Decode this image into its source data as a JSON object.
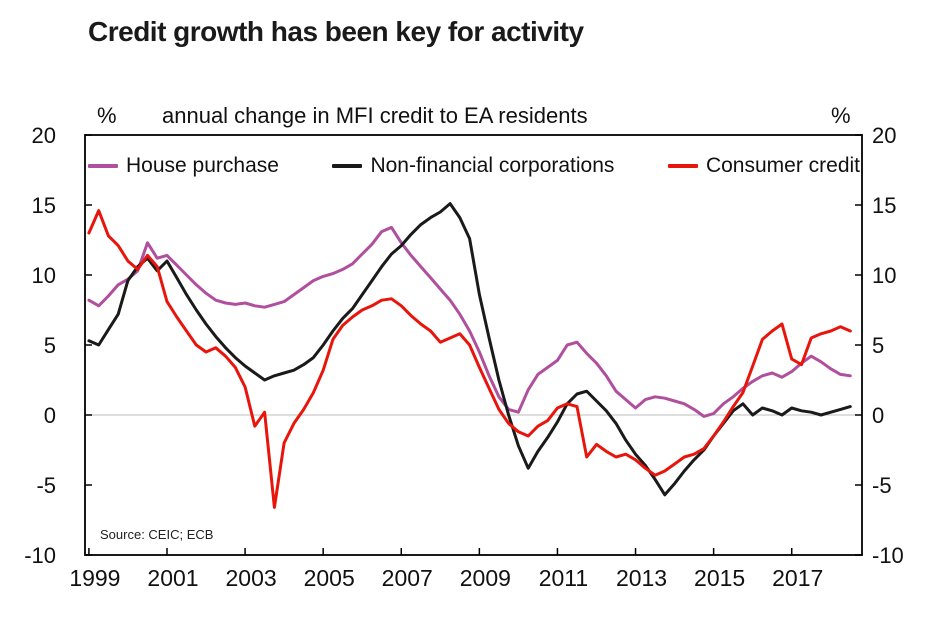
{
  "title": "Credit growth has been key for activity",
  "chart_data": {
    "type": "line",
    "subtitle": "annual change in MFI credit to EA residents",
    "y_unit_left": "%",
    "y_unit_right": "%",
    "source": "Source: CEIC; ECB",
    "ylim": [
      -10,
      20
    ],
    "yticks": [
      20,
      15,
      10,
      5,
      0,
      -5,
      -10
    ],
    "xlim": [
      1998.9,
      2018.8
    ],
    "xticks": [
      1999,
      2001,
      2003,
      2005,
      2007,
      2009,
      2011,
      2013,
      2015,
      2017
    ],
    "gridline_y": 0,
    "legend_position": "top-inside",
    "x": [
      1999,
      1999.25,
      1999.5,
      1999.75,
      2000,
      2000.25,
      2000.5,
      2000.75,
      2001,
      2001.25,
      2001.5,
      2001.75,
      2002,
      2002.25,
      2002.5,
      2002.75,
      2003,
      2003.25,
      2003.5,
      2003.75,
      2004,
      2004.25,
      2004.5,
      2004.75,
      2005,
      2005.25,
      2005.5,
      2005.75,
      2006,
      2006.25,
      2006.5,
      2006.75,
      2007,
      2007.25,
      2007.5,
      2007.75,
      2008,
      2008.25,
      2008.5,
      2008.75,
      2009,
      2009.25,
      2009.5,
      2009.75,
      2010,
      2010.25,
      2010.5,
      2010.75,
      2011,
      2011.25,
      2011.5,
      2011.75,
      2012,
      2012.25,
      2012.5,
      2012.75,
      2013,
      2013.25,
      2013.5,
      2013.75,
      2014,
      2014.25,
      2014.5,
      2014.75,
      2015,
      2015.25,
      2015.5,
      2015.75,
      2016,
      2016.25,
      2016.5,
      2016.75,
      2017,
      2017.25,
      2017.5,
      2017.75,
      2018,
      2018.25,
      2018.5
    ],
    "series": [
      {
        "name": "House purchase",
        "color": "#b04f9d",
        "values": [
          8.2,
          7.8,
          8.5,
          9.3,
          9.7,
          10.3,
          12.3,
          11.2,
          11.4,
          10.7,
          10.0,
          9.3,
          8.7,
          8.2,
          8.0,
          7.9,
          8.0,
          7.8,
          7.7,
          7.9,
          8.1,
          8.6,
          9.1,
          9.6,
          9.9,
          10.1,
          10.4,
          10.8,
          11.5,
          12.2,
          13.1,
          13.4,
          12.3,
          11.4,
          10.6,
          9.8,
          9.0,
          8.2,
          7.2,
          6.0,
          4.5,
          2.8,
          1.3,
          0.4,
          0.2,
          1.8,
          2.9,
          3.4,
          3.9,
          5.0,
          5.2,
          4.4,
          3.7,
          2.8,
          1.7,
          1.1,
          0.5,
          1.1,
          1.3,
          1.2,
          1.0,
          0.8,
          0.4,
          -0.1,
          0.1,
          0.8,
          1.3,
          1.9,
          2.4,
          2.8,
          3.0,
          2.7,
          3.1,
          3.7,
          4.2,
          3.8,
          3.3,
          2.9,
          2.8
        ]
      },
      {
        "name": "Non-financial corporations",
        "color": "#1a1a1a",
        "values": [
          5.3,
          5.0,
          6.1,
          7.2,
          9.6,
          10.6,
          11.2,
          10.3,
          11.0,
          9.8,
          8.6,
          7.5,
          6.5,
          5.6,
          4.8,
          4.1,
          3.5,
          3.0,
          2.5,
          2.8,
          3.0,
          3.2,
          3.6,
          4.1,
          5.0,
          6.0,
          6.9,
          7.6,
          8.6,
          9.6,
          10.6,
          11.5,
          12.1,
          12.9,
          13.6,
          14.1,
          14.5,
          15.1,
          14.1,
          12.6,
          8.6,
          5.5,
          2.5,
          0.0,
          -2.2,
          -3.8,
          -2.6,
          -1.6,
          -0.5,
          0.8,
          1.5,
          1.7,
          1.0,
          0.3,
          -0.6,
          -1.8,
          -2.8,
          -3.6,
          -4.6,
          -5.7,
          -4.9,
          -4.0,
          -3.2,
          -2.5,
          -1.5,
          -0.6,
          0.3,
          0.8,
          0.0,
          0.5,
          0.3,
          0.0,
          0.5,
          0.3,
          0.2,
          0.0,
          0.2,
          0.4,
          0.6
        ]
      },
      {
        "name": "Consumer credit",
        "color": "#e8150c",
        "values": [
          13.0,
          14.6,
          12.8,
          12.1,
          11.0,
          10.4,
          11.4,
          10.6,
          8.1,
          7.0,
          6.0,
          5.0,
          4.5,
          4.8,
          4.2,
          3.4,
          2.0,
          -0.8,
          0.2,
          -6.6,
          -2.0,
          -0.6,
          0.4,
          1.6,
          3.2,
          5.4,
          6.4,
          7.0,
          7.5,
          7.8,
          8.2,
          8.3,
          7.8,
          7.1,
          6.5,
          6.0,
          5.2,
          5.5,
          5.8,
          5.0,
          3.4,
          1.9,
          0.4,
          -0.6,
          -1.2,
          -1.5,
          -0.8,
          -0.4,
          0.5,
          0.8,
          0.6,
          -3.0,
          -2.1,
          -2.6,
          -3.0,
          -2.8,
          -3.2,
          -3.8,
          -4.3,
          -4.0,
          -3.5,
          -3.0,
          -2.8,
          -2.4,
          -1.5,
          -0.5,
          0.6,
          1.6,
          3.5,
          5.4,
          6.0,
          6.5,
          4.0,
          3.6,
          5.5,
          5.8,
          6.0,
          6.3,
          6.0
        ]
      }
    ]
  }
}
